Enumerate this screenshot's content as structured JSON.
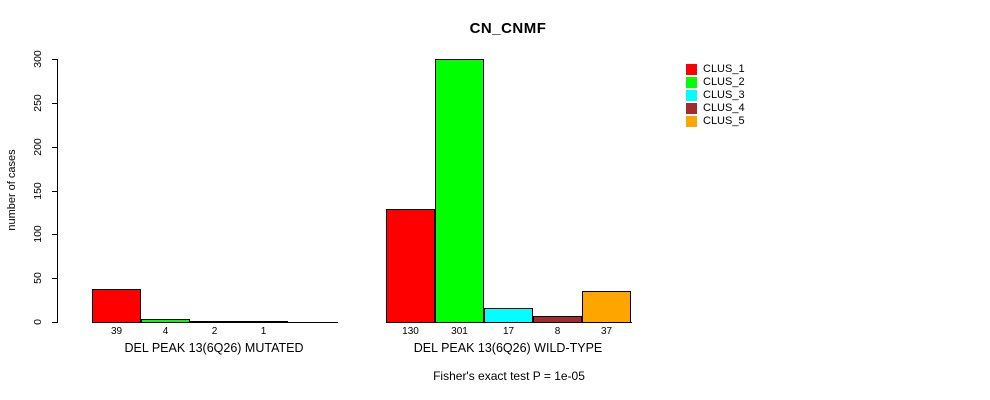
{
  "title": "CN_CNMF",
  "ylabel": "number of cases",
  "footer": "Fisher's exact test P = 1e-05",
  "legend": {
    "items": [
      {
        "label": "CLUS_1",
        "color": "#FF0000"
      },
      {
        "label": "CLUS_2",
        "color": "#00FF00"
      },
      {
        "label": "CLUS_3",
        "color": "#00FFFF"
      },
      {
        "label": "CLUS_4",
        "color": "#A52A2A"
      },
      {
        "label": "CLUS_5",
        "color": "#FFA500"
      }
    ]
  },
  "chart_data": {
    "type": "bar",
    "title": "CN_CNMF",
    "ylabel": "number of cases",
    "xlabel": "",
    "ylim": [
      0,
      300
    ],
    "yticks": [
      0,
      50,
      100,
      150,
      200,
      250,
      300
    ],
    "grid": false,
    "legend_position": "right",
    "annotation": "Fisher's exact test P = 1e-05",
    "series": [
      "CLUS_1",
      "CLUS_2",
      "CLUS_3",
      "CLUS_4",
      "CLUS_5"
    ],
    "colors": [
      "#FF0000",
      "#00FF00",
      "#00FFFF",
      "#A52A2A",
      "#FFA500"
    ],
    "groups": [
      {
        "label": "DEL PEAK 13(6Q26) MUTATED",
        "values": [
          39,
          4,
          2,
          1,
          0
        ],
        "value_labels": [
          "39",
          "4",
          "2",
          "1",
          ""
        ]
      },
      {
        "label": "DEL PEAK 13(6Q26) WILD-TYPE",
        "values": [
          130,
          301,
          17,
          8,
          37
        ],
        "value_labels": [
          "130",
          "301",
          "17",
          "8",
          "37"
        ]
      }
    ]
  }
}
